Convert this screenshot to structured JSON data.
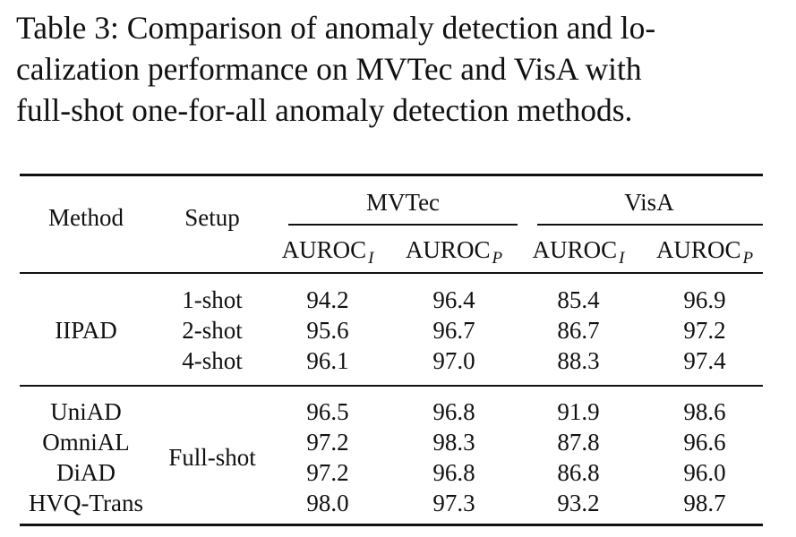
{
  "caption": {
    "line1": "Table 3: Comparison of anomaly detection and lo-",
    "line2": "calization performance on MVTec and VisA with",
    "line3": "full-shot one-for-all anomaly detection methods."
  },
  "table": {
    "headers": {
      "method": "Method",
      "setup": "Setup",
      "mvtec": "MVTec",
      "visa": "VisA",
      "auroc": "AUROC",
      "sub_i": "I",
      "sub_p": "P"
    },
    "group1": {
      "method": "IIPAD",
      "rows": [
        {
          "setup": "1-shot",
          "values": [
            "94.2",
            "96.4",
            "85.4",
            "96.9"
          ]
        },
        {
          "setup": "2-shot",
          "values": [
            "95.6",
            "96.7",
            "86.7",
            "97.2"
          ]
        },
        {
          "setup": "4-shot",
          "values": [
            "96.1",
            "97.0",
            "88.3",
            "97.4"
          ]
        }
      ]
    },
    "group2": {
      "setup": "Full-shot",
      "rows": [
        {
          "method": "UniAD",
          "values": [
            "96.5",
            "96.8",
            "91.9",
            "98.6"
          ]
        },
        {
          "method": "OmniAL",
          "values": [
            "97.2",
            "98.3",
            "87.8",
            "96.6"
          ]
        },
        {
          "method": "DiAD",
          "values": [
            "97.2",
            "96.8",
            "86.8",
            "96.0"
          ]
        },
        {
          "method": "HVQ-Trans",
          "values": [
            "98.0",
            "97.3",
            "93.2",
            "98.7"
          ]
        }
      ]
    }
  }
}
